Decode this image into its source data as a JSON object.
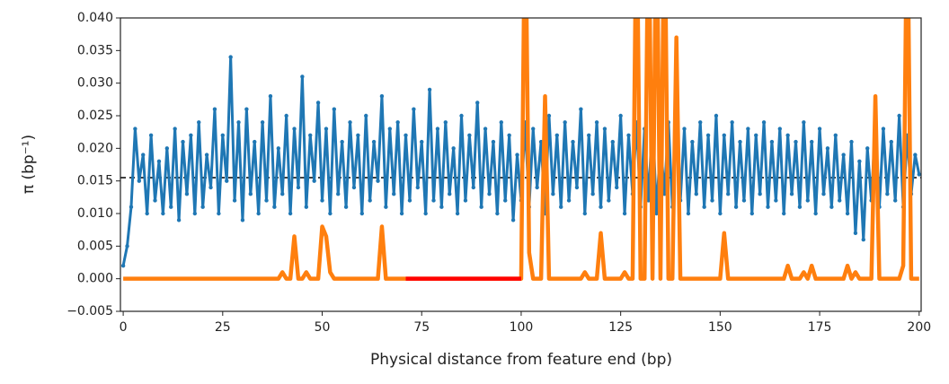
{
  "chart_data": {
    "type": "line",
    "xlabel": "Physical distance from feature end (bp)",
    "ylabel": "π (bp⁻¹)",
    "xlim": [
      -0.7,
      200.5
    ],
    "ylim": [
      -0.005,
      0.04
    ],
    "xticks": [
      0,
      25,
      50,
      75,
      100,
      125,
      150,
      175,
      200
    ],
    "yticks": [
      {
        "value": -0.005,
        "label": "−0.005"
      },
      {
        "value": 0,
        "label": "0.000"
      },
      {
        "value": 0.005,
        "label": "0.005"
      },
      {
        "value": 0.01,
        "label": "0.010"
      },
      {
        "value": 0.015,
        "label": "0.015"
      },
      {
        "value": 0.02,
        "label": "0.020"
      },
      {
        "value": 0.025,
        "label": "0.025"
      },
      {
        "value": 0.03,
        "label": "0.030"
      },
      {
        "value": 0.035,
        "label": "0.035"
      },
      {
        "value": 0.04,
        "label": "0.040"
      }
    ],
    "hline": 0.0155,
    "series": [
      {
        "color": "#1f77b4",
        "x": [
          0,
          1,
          2,
          3,
          4,
          5,
          6,
          7,
          8,
          9,
          10,
          11,
          12,
          13,
          14,
          15,
          16,
          17,
          18,
          19,
          20,
          21,
          22,
          23,
          24,
          25,
          26,
          27,
          28,
          29,
          30,
          31,
          32,
          33,
          34,
          35,
          36,
          37,
          38,
          39,
          40,
          41,
          42,
          43,
          44,
          45,
          46,
          47,
          48,
          49,
          50,
          51,
          52,
          53,
          54,
          55,
          56,
          57,
          58,
          59,
          60,
          61,
          62,
          63,
          64,
          65,
          66,
          67,
          68,
          69,
          70,
          71,
          72,
          73,
          74,
          75,
          76,
          77,
          78,
          79,
          80,
          81,
          82,
          83,
          84,
          85,
          86,
          87,
          88,
          89,
          90,
          91,
          92,
          93,
          94,
          95,
          96,
          97,
          98,
          99,
          100,
          101,
          102,
          103,
          104,
          105,
          106,
          107,
          108,
          109,
          110,
          111,
          112,
          113,
          114,
          115,
          116,
          117,
          118,
          119,
          120,
          121,
          122,
          123,
          124,
          125,
          126,
          127,
          128,
          129,
          130,
          131,
          132,
          133,
          134,
          135,
          136,
          137,
          138,
          139,
          140,
          141,
          142,
          143,
          144,
          145,
          146,
          147,
          148,
          149,
          150,
          151,
          152,
          153,
          154,
          155,
          156,
          157,
          158,
          159,
          160,
          161,
          162,
          163,
          164,
          165,
          166,
          167,
          168,
          169,
          170,
          171,
          172,
          173,
          174,
          175,
          176,
          177,
          178,
          179,
          180,
          181,
          182,
          183,
          184,
          185,
          186,
          187,
          188,
          189,
          190,
          191,
          192,
          193,
          194,
          195,
          196,
          197,
          198,
          199,
          200
        ],
        "values": [
          0.002,
          0.005,
          0.011,
          0.023,
          0.015,
          0.019,
          0.01,
          0.022,
          0.012,
          0.018,
          0.01,
          0.02,
          0.011,
          0.023,
          0.009,
          0.021,
          0.013,
          0.022,
          0.01,
          0.024,
          0.011,
          0.019,
          0.014,
          0.026,
          0.01,
          0.022,
          0.015,
          0.034,
          0.012,
          0.024,
          0.009,
          0.026,
          0.013,
          0.021,
          0.01,
          0.024,
          0.012,
          0.028,
          0.011,
          0.02,
          0.013,
          0.025,
          0.01,
          0.023,
          0.014,
          0.031,
          0.011,
          0.022,
          0.015,
          0.027,
          0.012,
          0.023,
          0.01,
          0.026,
          0.013,
          0.021,
          0.011,
          0.024,
          0.014,
          0.022,
          0.01,
          0.025,
          0.012,
          0.021,
          0.015,
          0.028,
          0.011,
          0.023,
          0.013,
          0.024,
          0.01,
          0.022,
          0.012,
          0.026,
          0.014,
          0.021,
          0.01,
          0.029,
          0.012,
          0.023,
          0.011,
          0.024,
          0.013,
          0.02,
          0.01,
          0.025,
          0.012,
          0.022,
          0.014,
          0.027,
          0.011,
          0.023,
          0.013,
          0.021,
          0.01,
          0.024,
          0.012,
          0.022,
          0.009,
          0.019,
          0.012,
          0.024,
          0.011,
          0.023,
          0.014,
          0.021,
          0.01,
          0.025,
          0.013,
          0.022,
          0.011,
          0.024,
          0.012,
          0.021,
          0.014,
          0.026,
          0.01,
          0.022,
          0.013,
          0.024,
          0.011,
          0.023,
          0.012,
          0.021,
          0.014,
          0.025,
          0.01,
          0.022,
          0.013,
          0.024,
          0.011,
          0.023,
          0.012,
          0.025,
          0.01,
          0.021,
          0.013,
          0.024,
          0.011,
          0.022,
          0.012,
          0.023,
          0.01,
          0.021,
          0.013,
          0.024,
          0.011,
          0.022,
          0.012,
          0.025,
          0.01,
          0.022,
          0.013,
          0.024,
          0.011,
          0.021,
          0.012,
          0.023,
          0.01,
          0.022,
          0.013,
          0.024,
          0.011,
          0.021,
          0.012,
          0.023,
          0.01,
          0.022,
          0.013,
          0.021,
          0.011,
          0.024,
          0.012,
          0.021,
          0.01,
          0.023,
          0.013,
          0.02,
          0.011,
          0.022,
          0.012,
          0.019,
          0.01,
          0.021,
          0.007,
          0.018,
          0.006,
          0.02,
          0.012,
          0.024,
          0.011,
          0.023,
          0.013,
          0.021,
          0.012,
          0.025,
          0.011,
          0.022,
          0.013,
          0.019,
          0.016
        ]
      },
      {
        "color": "#ff7f0e",
        "x": [
          0,
          39,
          40,
          41,
          42,
          43,
          44,
          45,
          46,
          47,
          49,
          50,
          51,
          52,
          53,
          64,
          65,
          66,
          100,
          101,
          102,
          103,
          105,
          106,
          107,
          115,
          116,
          117,
          119,
          120,
          121,
          125,
          126,
          127,
          128,
          129,
          130,
          131,
          132,
          133,
          134,
          135,
          136,
          137,
          138,
          139,
          140,
          150,
          151,
          152,
          166,
          167,
          168,
          170,
          171,
          172,
          173,
          174,
          181,
          182,
          183,
          184,
          185,
          188,
          189,
          190,
          195,
          196,
          197,
          198,
          200
        ],
        "values": [
          0,
          0,
          0.001,
          0,
          0,
          0.0065,
          0,
          0,
          0.001,
          0,
          0,
          0.008,
          0.0065,
          0.001,
          0,
          0,
          0.008,
          0,
          0,
          0.06,
          0.004,
          0,
          0,
          0.028,
          0,
          0,
          0.001,
          0,
          0,
          0.007,
          0,
          0,
          0.001,
          0,
          0,
          0.06,
          0,
          0,
          0.06,
          0,
          0.06,
          0,
          0.06,
          0,
          0,
          0.037,
          0,
          0,
          0.007,
          0,
          0,
          0.002,
          0,
          0,
          0.001,
          0,
          0.002,
          0,
          0,
          0.002,
          0,
          0.001,
          0,
          0,
          0.028,
          0,
          0,
          0.002,
          0.06,
          0,
          0
        ]
      },
      {
        "color": "#ff0000",
        "x": [
          71,
          100
        ],
        "values": [
          0,
          0
        ]
      }
    ]
  }
}
